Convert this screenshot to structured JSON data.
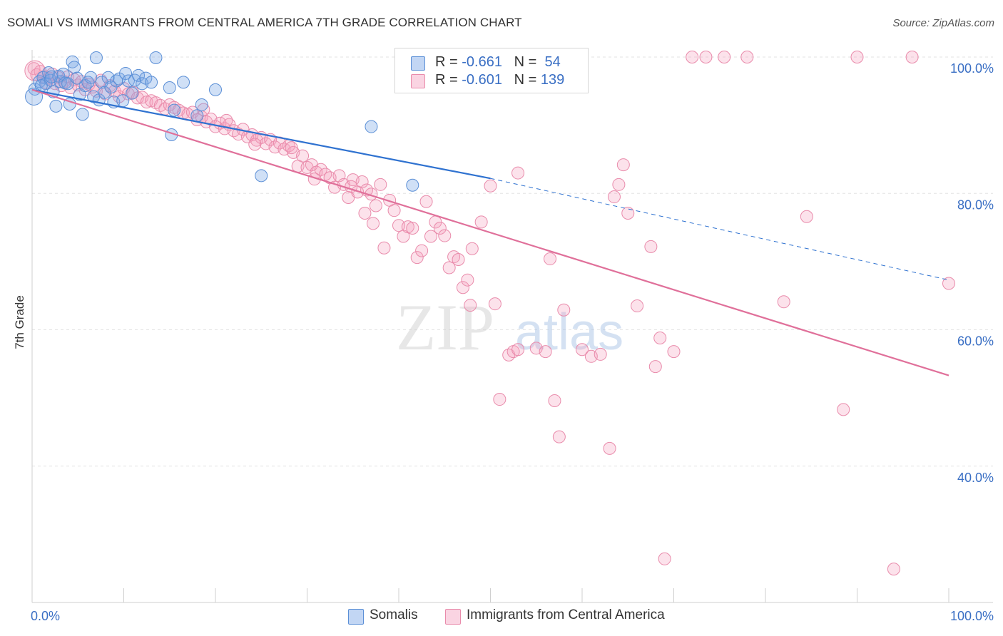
{
  "title": "SOMALI VS IMMIGRANTS FROM CENTRAL AMERICA 7TH GRADE CORRELATION CHART",
  "source": "Source: ZipAtlas.com",
  "watermark": {
    "zip": "ZIP",
    "atlas": "atlas"
  },
  "legend": {
    "rows": [
      {
        "r_label": "R = ",
        "r_value": "-0.661",
        "n_label": "N = ",
        "n_value": "54"
      },
      {
        "r_label": "R = ",
        "r_value": "-0.601",
        "n_label": "N = ",
        "n_value": "139"
      }
    ]
  },
  "colors": {
    "somali_fill": "rgba(120,165,230,0.35)",
    "somali_stroke": "#5b8fd6",
    "somali_line": "#2f72d0",
    "central_fill": "rgba(245,160,190,0.30)",
    "central_stroke": "#e98bab",
    "central_line": "#e0709a",
    "axis_label": "#3a6fc4",
    "grid": "#e3e3e3"
  },
  "chart_data": {
    "type": "scatter",
    "title": "SOMALI VS IMMIGRANTS FROM CENTRAL AMERICA 7TH GRADE CORRELATION CHART",
    "xlabel": "",
    "ylabel": "7th Grade",
    "xlim": [
      0,
      100
    ],
    "ylim": [
      20,
      100
    ],
    "x_tick_labels": [
      "0.0%",
      "100.0%"
    ],
    "y_tick_labels": [
      "100.0%",
      "80.0%",
      "60.0%",
      "40.0%"
    ],
    "y_ticks": [
      100,
      80,
      60,
      40
    ],
    "grid": true,
    "legend_position": "top-center",
    "series": [
      {
        "name": "Somalis",
        "r": -0.661,
        "n": 54,
        "trend": {
          "x0": 0,
          "y0": 95.2,
          "x1": 50,
          "y1": 82.2,
          "dashed_to_x": 100,
          "dashed_to_y": 67.3
        },
        "points": [
          [
            0.3,
            95.3
          ],
          [
            0.8,
            96.4
          ],
          [
            1.2,
            97.0
          ],
          [
            1.5,
            96.1
          ],
          [
            1.8,
            97.7
          ],
          [
            2.0,
            96.6
          ],
          [
            2.3,
            94.9
          ],
          [
            2.6,
            92.8
          ],
          [
            2.9,
            97.2
          ],
          [
            3.1,
            96.4
          ],
          [
            3.4,
            97.5
          ],
          [
            3.6,
            96.2
          ],
          [
            3.9,
            96.1
          ],
          [
            4.1,
            93.1
          ],
          [
            4.4,
            99.3
          ],
          [
            4.6,
            98.5
          ],
          [
            4.9,
            96.9
          ],
          [
            5.2,
            94.5
          ],
          [
            5.5,
            91.6
          ],
          [
            5.8,
            95.8
          ],
          [
            6.1,
            96.3
          ],
          [
            6.4,
            97.0
          ],
          [
            6.7,
            94.2
          ],
          [
            7.0,
            99.9
          ],
          [
            7.3,
            93.7
          ],
          [
            7.6,
            96.3
          ],
          [
            7.9,
            94.8
          ],
          [
            8.3,
            97.0
          ],
          [
            8.6,
            95.6
          ],
          [
            8.9,
            93.4
          ],
          [
            9.2,
            96.5
          ],
          [
            9.5,
            96.8
          ],
          [
            9.9,
            93.6
          ],
          [
            10.2,
            97.6
          ],
          [
            10.5,
            96.5
          ],
          [
            10.9,
            94.7
          ],
          [
            11.2,
            96.6
          ],
          [
            11.6,
            97.3
          ],
          [
            12.0,
            96.1
          ],
          [
            12.4,
            96.9
          ],
          [
            13.0,
            96.3
          ],
          [
            13.5,
            99.9
          ],
          [
            15.0,
            95.5
          ],
          [
            15.5,
            92.2
          ],
          [
            16.5,
            96.3
          ],
          [
            18.0,
            91.4
          ],
          [
            20.0,
            95.2
          ],
          [
            15.2,
            88.6
          ],
          [
            18.5,
            93.0
          ],
          [
            25.0,
            82.6
          ],
          [
            37.0,
            89.8
          ],
          [
            41.5,
            81.2
          ],
          [
            1.0,
            95.8
          ],
          [
            2.1,
            97.1
          ]
        ]
      },
      {
        "name": "Immigrants from Central America",
        "r": -0.601,
        "n": 139,
        "trend": {
          "x0": 0,
          "y0": 95.2,
          "x1": 100,
          "y1": 53.3
        },
        "points": [
          [
            0.2,
            98.3
          ],
          [
            0.5,
            97.4
          ],
          [
            0.9,
            97.9
          ],
          [
            1.3,
            97.1
          ],
          [
            1.6,
            96.2
          ],
          [
            1.9,
            96.9
          ],
          [
            2.2,
            97.5
          ],
          [
            2.5,
            96.1
          ],
          [
            2.9,
            97.0
          ],
          [
            3.2,
            95.8
          ],
          [
            3.5,
            96.4
          ],
          [
            3.9,
            97.1
          ],
          [
            4.2,
            95.5
          ],
          [
            4.6,
            96.7
          ],
          [
            5.0,
            95.9
          ],
          [
            5.4,
            96.4
          ],
          [
            5.8,
            95.2
          ],
          [
            6.2,
            96.0
          ],
          [
            6.6,
            95.6
          ],
          [
            7.0,
            95.0
          ],
          [
            7.5,
            96.6
          ],
          [
            8.0,
            94.6
          ],
          [
            8.5,
            95.8
          ],
          [
            9.0,
            95.0
          ],
          [
            9.5,
            94.2
          ],
          [
            10.0,
            95.4
          ],
          [
            10.5,
            94.6
          ],
          [
            11.0,
            94.8
          ],
          [
            11.5,
            94.0
          ],
          [
            12.0,
            94.1
          ],
          [
            12.5,
            93.4
          ],
          [
            13.0,
            93.6
          ],
          [
            13.5,
            93.3
          ],
          [
            14.0,
            92.9
          ],
          [
            14.5,
            92.4
          ],
          [
            15.0,
            93.0
          ],
          [
            15.5,
            92.6
          ],
          [
            16.0,
            92.2
          ],
          [
            16.5,
            91.8
          ],
          [
            17.0,
            91.6
          ],
          [
            17.5,
            91.9
          ],
          [
            18.0,
            90.8
          ],
          [
            18.5,
            91.2
          ],
          [
            19.0,
            90.5
          ],
          [
            19.5,
            90.9
          ],
          [
            20.0,
            89.8
          ],
          [
            20.5,
            90.3
          ],
          [
            21.0,
            89.5
          ],
          [
            21.5,
            90.1
          ],
          [
            22.0,
            89.2
          ],
          [
            22.5,
            88.7
          ],
          [
            23.0,
            89.4
          ],
          [
            23.5,
            88.3
          ],
          [
            24.0,
            88.6
          ],
          [
            24.5,
            87.8
          ],
          [
            25.0,
            88.2
          ],
          [
            25.5,
            87.3
          ],
          [
            26.0,
            87.9
          ],
          [
            26.5,
            86.8
          ],
          [
            27.0,
            87.4
          ],
          [
            27.5,
            86.5
          ],
          [
            28.0,
            87.0
          ],
          [
            28.5,
            86.0
          ],
          [
            29.0,
            84.0
          ],
          [
            29.5,
            85.5
          ],
          [
            30.0,
            83.8
          ],
          [
            30.5,
            84.2
          ],
          [
            31.0,
            83.1
          ],
          [
            31.5,
            83.5
          ],
          [
            32.0,
            82.8
          ],
          [
            32.5,
            82.3
          ],
          [
            33.0,
            80.9
          ],
          [
            33.5,
            82.6
          ],
          [
            34.0,
            81.3
          ],
          [
            34.5,
            79.4
          ],
          [
            35.0,
            82.0
          ],
          [
            35.5,
            80.2
          ],
          [
            36.0,
            81.7
          ],
          [
            36.5,
            80.5
          ],
          [
            37.0,
            79.9
          ],
          [
            37.5,
            78.2
          ],
          [
            38.0,
            81.3
          ],
          [
            18.7,
            92.3
          ],
          [
            21.2,
            90.7
          ],
          [
            24.3,
            87.2
          ],
          [
            28.3,
            86.7
          ],
          [
            30.8,
            82.1
          ],
          [
            34.8,
            81.0
          ],
          [
            36.3,
            77.1
          ],
          [
            37.2,
            75.6
          ],
          [
            38.4,
            72.0
          ],
          [
            39.0,
            79.0
          ],
          [
            39.5,
            77.5
          ],
          [
            40.0,
            75.3
          ],
          [
            40.5,
            73.7
          ],
          [
            41.0,
            75.1
          ],
          [
            41.5,
            74.9
          ],
          [
            42.0,
            70.6
          ],
          [
            42.5,
            71.6
          ],
          [
            43.0,
            78.8
          ],
          [
            43.5,
            73.7
          ],
          [
            44.0,
            75.8
          ],
          [
            44.5,
            74.9
          ],
          [
            45.0,
            73.8
          ],
          [
            45.5,
            69.1
          ],
          [
            46.0,
            70.7
          ],
          [
            46.5,
            70.3
          ],
          [
            47.0,
            66.2
          ],
          [
            47.5,
            67.3
          ],
          [
            47.8,
            63.6
          ],
          [
            48.0,
            71.9
          ],
          [
            49.0,
            75.8
          ],
          [
            50.0,
            81.1
          ],
          [
            50.5,
            63.8
          ],
          [
            52.0,
            56.3
          ],
          [
            52.5,
            56.8
          ],
          [
            53.0,
            57.1
          ],
          [
            55.0,
            57.3
          ],
          [
            56.0,
            56.8
          ],
          [
            56.5,
            70.4
          ],
          [
            57.0,
            49.6
          ],
          [
            57.5,
            44.3
          ],
          [
            58.0,
            62.9
          ],
          [
            60.0,
            57.1
          ],
          [
            61.0,
            56.1
          ],
          [
            62.0,
            56.4
          ],
          [
            63.0,
            42.6
          ],
          [
            63.5,
            79.5
          ],
          [
            64.0,
            81.3
          ],
          [
            64.5,
            84.2
          ],
          [
            65.0,
            77.1
          ],
          [
            66.0,
            63.5
          ],
          [
            67.5,
            72.2
          ],
          [
            68.0,
            54.6
          ],
          [
            69.0,
            26.4
          ],
          [
            68.5,
            58.8
          ],
          [
            50.0,
            100.0
          ],
          [
            51.0,
            100.0
          ],
          [
            70.0,
            56.8
          ],
          [
            72.0,
            100.0
          ],
          [
            73.5,
            100.0
          ],
          [
            75.5,
            100.0
          ],
          [
            78.0,
            100.0
          ],
          [
            82.0,
            64.1
          ],
          [
            84.5,
            76.6
          ],
          [
            88.5,
            48.3
          ],
          [
            90.0,
            100.0
          ],
          [
            94.0,
            24.9
          ],
          [
            96.0,
            100.0
          ],
          [
            100.0,
            66.8
          ],
          [
            53.0,
            83.0
          ],
          [
            51.0,
            49.8
          ]
        ]
      }
    ]
  }
}
